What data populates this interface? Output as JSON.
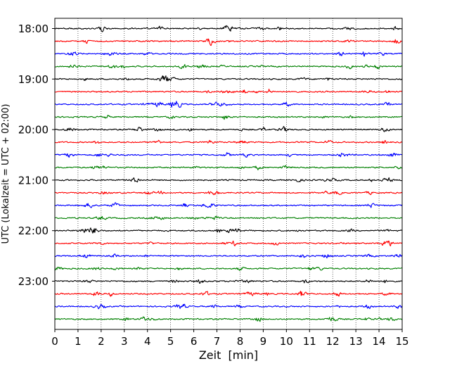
{
  "chart_data": {
    "type": "line",
    "title": "",
    "xlabel": "Zeit  [min]",
    "ylabel": "UTC (Lokalzeit = UTC + 02:00)",
    "xlim": [
      0,
      15
    ],
    "x_ticks": [
      "0",
      "1",
      "2",
      "3",
      "4",
      "5",
      "6",
      "7",
      "8",
      "9",
      "10",
      "11",
      "12",
      "13",
      "14",
      "15"
    ],
    "y_ticks": [
      "18:00",
      "19:00",
      "20:00",
      "21:00",
      "22:00",
      "23:00"
    ],
    "trace_count": 24,
    "trace_interval_min": 15,
    "first_trace": "18:00",
    "trace_colors": [
      "#000000",
      "#ff0000",
      "#0000ff",
      "#008000"
    ],
    "vertical_grid": "dotted",
    "legend": "none"
  }
}
